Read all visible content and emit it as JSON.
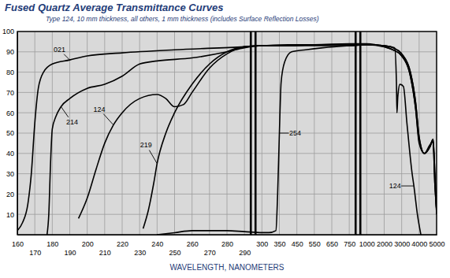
{
  "chart_data": {
    "type": "line",
    "title": "Fused Quartz Average Transmittance Curves",
    "subtitle": "Type 124, 10 mm thickness, all others, 1 mm thickness (includes Surface Reflection Losses)",
    "x_label": "WAVELENGTH, NANOMETERS",
    "xlim": [
      160,
      5000
    ],
    "xticks": [
      160,
      170,
      180,
      190,
      200,
      210,
      220,
      230,
      240,
      250,
      260,
      270,
      280,
      290,
      300,
      350,
      450,
      550,
      650,
      750,
      1000,
      2000,
      3000,
      4000,
      5000
    ],
    "ylim": [
      0,
      100
    ],
    "yticks": [
      10,
      20,
      30,
      40,
      50,
      60,
      70,
      80,
      90,
      100
    ],
    "grid": true,
    "series": [
      {
        "color": "#000000",
        "x": [
          160,
          163,
          166,
          168,
          170,
          172,
          175,
          180,
          190,
          200,
          220,
          250,
          290,
          300,
          400,
          550,
          750,
          1000,
          2000,
          2500,
          3000,
          3500,
          3800,
          4000,
          4300,
          4600,
          4800,
          4900,
          5000
        ],
        "values": [
          2,
          6,
          15,
          30,
          55,
          72,
          80,
          84,
          86,
          88,
          89.5,
          91,
          92.5,
          93,
          93.5,
          93.5,
          94,
          94,
          92.5,
          91,
          88,
          78,
          62,
          46,
          40,
          43,
          46,
          25,
          12
        ]
      },
      {
        "color": "#000000",
        "x": [
          177,
          178,
          179,
          180,
          182,
          185,
          190,
          200,
          210,
          220,
          230,
          240,
          260,
          280,
          290,
          300,
          400,
          550,
          750,
          1000,
          2000,
          2500,
          3000,
          3500,
          3800,
          4000,
          4300,
          4600,
          4800,
          4900,
          5000
        ],
        "values": [
          0,
          10,
          35,
          52,
          58,
          63,
          67,
          72,
          74,
          78,
          84,
          85.5,
          87,
          90,
          92,
          93,
          93,
          93.5,
          93.5,
          93.5,
          93,
          92,
          89,
          80,
          65,
          48,
          40,
          43,
          47,
          30,
          10
        ]
      },
      {
        "color": "#000000",
        "x": [
          195,
          200,
          205,
          210,
          215,
          220,
          230,
          240,
          245,
          250,
          255,
          260,
          270,
          280,
          290,
          300,
          400,
          550,
          750,
          1000,
          2000,
          2600,
          2700,
          2730,
          2780,
          2900,
          3100,
          3300,
          3600,
          3700,
          3900,
          4100
        ],
        "values": [
          8,
          18,
          32,
          45,
          54,
          60,
          67,
          69,
          67,
          63,
          64,
          70,
          82,
          89,
          92.5,
          93,
          93,
          93,
          93,
          93.5,
          93,
          92,
          75,
          60,
          68,
          74,
          73,
          55,
          30,
          24,
          10,
          0
        ]
      },
      {
        "color": "#000000",
        "x": [
          232,
          235,
          238,
          240,
          245,
          250,
          260,
          270,
          280,
          290,
          300,
          400,
          550,
          750,
          1000,
          2000,
          2500,
          3000,
          3500,
          3800,
          4000,
          4300,
          4600,
          4800,
          4900,
          5000
        ],
        "values": [
          3,
          12,
          25,
          35,
          50,
          60,
          74,
          84,
          90,
          92.5,
          93,
          93,
          93.5,
          93.5,
          93.5,
          92.5,
          91,
          88,
          78,
          62,
          45,
          40,
          44,
          46,
          25,
          12
        ]
      },
      {
        "color": "#000000",
        "x": [
          240,
          250,
          260,
          270,
          280,
          290,
          300,
          320,
          340,
          345,
          350,
          360,
          380,
          420,
          500,
          600,
          750,
          1000,
          2000,
          2500,
          3000,
          3500,
          3800,
          4000,
          4300,
          4600,
          4800,
          4900,
          5000
        ],
        "values": [
          0,
          1,
          2,
          2,
          2,
          1.5,
          1,
          1,
          2,
          20,
          50,
          75,
          85,
          90,
          91,
          92,
          93,
          93.5,
          93,
          92,
          89,
          80,
          65,
          48,
          40,
          43,
          47,
          30,
          10
        ]
      }
    ],
    "annotations": [
      {
        "text": "021",
        "x": 190,
        "y": 86
      },
      {
        "text": "214",
        "x": 185,
        "y": 63
      },
      {
        "text": "124",
        "x": 215,
        "y": 54
      },
      {
        "text": "219",
        "x": 240,
        "y": 35
      },
      {
        "text": "254",
        "x": 350,
        "y": 50
      },
      {
        "text": "124",
        "x": 3700,
        "y": 24
      }
    ]
  }
}
